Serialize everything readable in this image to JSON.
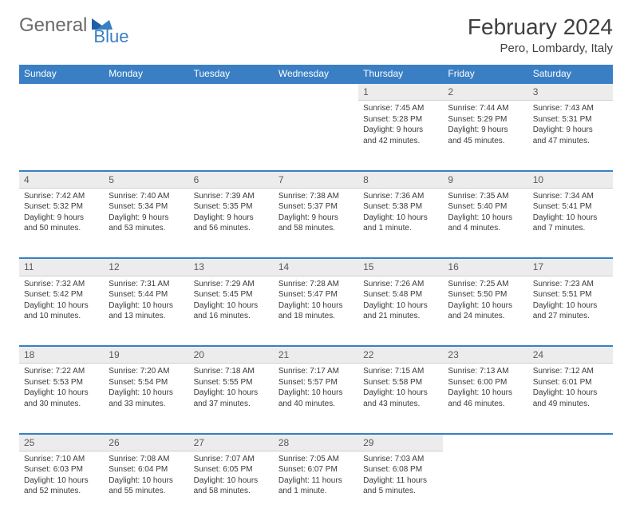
{
  "brand": {
    "part1": "General",
    "part2": "Blue"
  },
  "title": "February 2024",
  "location": "Pero, Lombardy, Italy",
  "colors": {
    "header_bg": "#3a7fc4",
    "header_text": "#ffffff",
    "daynum_bg": "#ececec",
    "border": "#3a7fc4",
    "text": "#3a3a3a"
  },
  "day_headers": [
    "Sunday",
    "Monday",
    "Tuesday",
    "Wednesday",
    "Thursday",
    "Friday",
    "Saturday"
  ],
  "weeks": [
    {
      "nums": [
        "",
        "",
        "",
        "",
        "1",
        "2",
        "3"
      ],
      "cells": [
        {
          "empty": true
        },
        {
          "empty": true
        },
        {
          "empty": true
        },
        {
          "empty": true
        },
        {
          "sunrise": "7:45 AM",
          "sunset": "5:28 PM",
          "daylight": "9 hours and 42 minutes."
        },
        {
          "sunrise": "7:44 AM",
          "sunset": "5:29 PM",
          "daylight": "9 hours and 45 minutes."
        },
        {
          "sunrise": "7:43 AM",
          "sunset": "5:31 PM",
          "daylight": "9 hours and 47 minutes."
        }
      ]
    },
    {
      "nums": [
        "4",
        "5",
        "6",
        "7",
        "8",
        "9",
        "10"
      ],
      "cells": [
        {
          "sunrise": "7:42 AM",
          "sunset": "5:32 PM",
          "daylight": "9 hours and 50 minutes."
        },
        {
          "sunrise": "7:40 AM",
          "sunset": "5:34 PM",
          "daylight": "9 hours and 53 minutes."
        },
        {
          "sunrise": "7:39 AM",
          "sunset": "5:35 PM",
          "daylight": "9 hours and 56 minutes."
        },
        {
          "sunrise": "7:38 AM",
          "sunset": "5:37 PM",
          "daylight": "9 hours and 58 minutes."
        },
        {
          "sunrise": "7:36 AM",
          "sunset": "5:38 PM",
          "daylight": "10 hours and 1 minute."
        },
        {
          "sunrise": "7:35 AM",
          "sunset": "5:40 PM",
          "daylight": "10 hours and 4 minutes."
        },
        {
          "sunrise": "7:34 AM",
          "sunset": "5:41 PM",
          "daylight": "10 hours and 7 minutes."
        }
      ]
    },
    {
      "nums": [
        "11",
        "12",
        "13",
        "14",
        "15",
        "16",
        "17"
      ],
      "cells": [
        {
          "sunrise": "7:32 AM",
          "sunset": "5:42 PM",
          "daylight": "10 hours and 10 minutes."
        },
        {
          "sunrise": "7:31 AM",
          "sunset": "5:44 PM",
          "daylight": "10 hours and 13 minutes."
        },
        {
          "sunrise": "7:29 AM",
          "sunset": "5:45 PM",
          "daylight": "10 hours and 16 minutes."
        },
        {
          "sunrise": "7:28 AM",
          "sunset": "5:47 PM",
          "daylight": "10 hours and 18 minutes."
        },
        {
          "sunrise": "7:26 AM",
          "sunset": "5:48 PM",
          "daylight": "10 hours and 21 minutes."
        },
        {
          "sunrise": "7:25 AM",
          "sunset": "5:50 PM",
          "daylight": "10 hours and 24 minutes."
        },
        {
          "sunrise": "7:23 AM",
          "sunset": "5:51 PM",
          "daylight": "10 hours and 27 minutes."
        }
      ]
    },
    {
      "nums": [
        "18",
        "19",
        "20",
        "21",
        "22",
        "23",
        "24"
      ],
      "cells": [
        {
          "sunrise": "7:22 AM",
          "sunset": "5:53 PM",
          "daylight": "10 hours and 30 minutes."
        },
        {
          "sunrise": "7:20 AM",
          "sunset": "5:54 PM",
          "daylight": "10 hours and 33 minutes."
        },
        {
          "sunrise": "7:18 AM",
          "sunset": "5:55 PM",
          "daylight": "10 hours and 37 minutes."
        },
        {
          "sunrise": "7:17 AM",
          "sunset": "5:57 PM",
          "daylight": "10 hours and 40 minutes."
        },
        {
          "sunrise": "7:15 AM",
          "sunset": "5:58 PM",
          "daylight": "10 hours and 43 minutes."
        },
        {
          "sunrise": "7:13 AM",
          "sunset": "6:00 PM",
          "daylight": "10 hours and 46 minutes."
        },
        {
          "sunrise": "7:12 AM",
          "sunset": "6:01 PM",
          "daylight": "10 hours and 49 minutes."
        }
      ]
    },
    {
      "nums": [
        "25",
        "26",
        "27",
        "28",
        "29",
        "",
        ""
      ],
      "cells": [
        {
          "sunrise": "7:10 AM",
          "sunset": "6:03 PM",
          "daylight": "10 hours and 52 minutes."
        },
        {
          "sunrise": "7:08 AM",
          "sunset": "6:04 PM",
          "daylight": "10 hours and 55 minutes."
        },
        {
          "sunrise": "7:07 AM",
          "sunset": "6:05 PM",
          "daylight": "10 hours and 58 minutes."
        },
        {
          "sunrise": "7:05 AM",
          "sunset": "6:07 PM",
          "daylight": "11 hours and 1 minute."
        },
        {
          "sunrise": "7:03 AM",
          "sunset": "6:08 PM",
          "daylight": "11 hours and 5 minutes."
        },
        {
          "empty": true
        },
        {
          "empty": true
        }
      ]
    }
  ]
}
